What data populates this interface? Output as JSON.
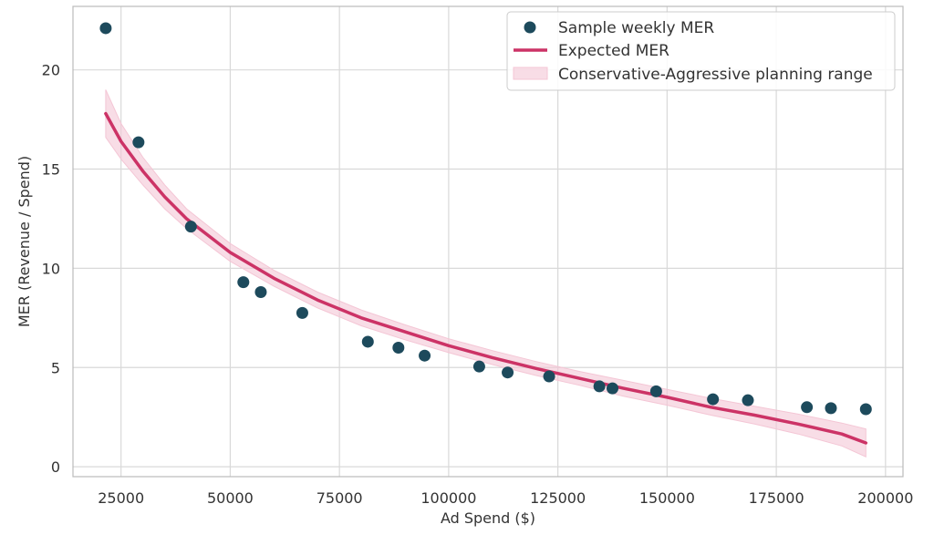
{
  "chart_data": {
    "type": "scatter",
    "title": "",
    "xlabel": "Ad Spend ($)",
    "ylabel": "MER (Revenue / Spend)",
    "xlim": [
      14000,
      204000
    ],
    "ylim": [
      -0.5,
      23.2
    ],
    "grid": true,
    "legend_position": "top-right",
    "x_ticks": [
      25000,
      50000,
      75000,
      100000,
      125000,
      150000,
      175000,
      200000
    ],
    "y_ticks": [
      0,
      5,
      10,
      15,
      20
    ],
    "x_tick_labels": [
      "25000",
      "50000",
      "75000",
      "100000",
      "125000",
      "150000",
      "175000",
      "200000"
    ],
    "y_tick_labels": [
      "0",
      "5",
      "10",
      "15",
      "20"
    ],
    "colors": {
      "scatter": "#1d4a5c",
      "line": "#cc3366",
      "band": "#f4c6d5",
      "grid": "#d9d9d9",
      "axis": "#bbbbbb"
    },
    "series": [
      {
        "name": "Sample weekly MER",
        "type": "scatter",
        "points": [
          [
            21500,
            22.1
          ],
          [
            29000,
            16.35
          ],
          [
            41000,
            12.1
          ],
          [
            53000,
            9.3
          ],
          [
            57000,
            8.8
          ],
          [
            66500,
            7.75
          ],
          [
            81500,
            6.3
          ],
          [
            88500,
            6.0
          ],
          [
            94500,
            5.6
          ],
          [
            107000,
            5.05
          ],
          [
            113500,
            4.75
          ],
          [
            123000,
            4.55
          ],
          [
            134500,
            4.05
          ],
          [
            137500,
            3.95
          ],
          [
            147500,
            3.8
          ],
          [
            160500,
            3.4
          ],
          [
            168500,
            3.35
          ],
          [
            182000,
            3.0
          ],
          [
            187500,
            2.95
          ],
          [
            195500,
            2.9
          ]
        ]
      },
      {
        "name": "Expected MER",
        "type": "line",
        "points": [
          [
            21500,
            17.8
          ],
          [
            25000,
            16.4
          ],
          [
            30000,
            14.9
          ],
          [
            35000,
            13.6
          ],
          [
            40000,
            12.5
          ],
          [
            50000,
            10.8
          ],
          [
            60000,
            9.5
          ],
          [
            70000,
            8.4
          ],
          [
            80000,
            7.5
          ],
          [
            90000,
            6.8
          ],
          [
            100000,
            6.1
          ],
          [
            110000,
            5.5
          ],
          [
            120000,
            4.95
          ],
          [
            130000,
            4.45
          ],
          [
            140000,
            3.95
          ],
          [
            150000,
            3.5
          ],
          [
            160000,
            3.0
          ],
          [
            170000,
            2.6
          ],
          [
            180000,
            2.15
          ],
          [
            190000,
            1.65
          ],
          [
            195500,
            1.2
          ]
        ]
      },
      {
        "name": "Conservative-Aggressive planning range",
        "type": "band",
        "upper": [
          [
            21500,
            19.0
          ],
          [
            25000,
            17.3
          ],
          [
            30000,
            15.6
          ],
          [
            35000,
            14.2
          ],
          [
            40000,
            13.0
          ],
          [
            50000,
            11.25
          ],
          [
            60000,
            9.9
          ],
          [
            70000,
            8.8
          ],
          [
            80000,
            7.9
          ],
          [
            90000,
            7.15
          ],
          [
            100000,
            6.45
          ],
          [
            110000,
            5.85
          ],
          [
            120000,
            5.3
          ],
          [
            130000,
            4.8
          ],
          [
            140000,
            4.35
          ],
          [
            150000,
            3.9
          ],
          [
            160000,
            3.45
          ],
          [
            170000,
            3.05
          ],
          [
            180000,
            2.65
          ],
          [
            190000,
            2.2
          ],
          [
            195500,
            1.9
          ]
        ],
        "lower": [
          [
            21500,
            16.6
          ],
          [
            25000,
            15.5
          ],
          [
            30000,
            14.2
          ],
          [
            35000,
            13.0
          ],
          [
            40000,
            12.0
          ],
          [
            50000,
            10.35
          ],
          [
            60000,
            9.1
          ],
          [
            70000,
            8.0
          ],
          [
            80000,
            7.1
          ],
          [
            90000,
            6.4
          ],
          [
            100000,
            5.75
          ],
          [
            110000,
            5.15
          ],
          [
            120000,
            4.6
          ],
          [
            130000,
            4.1
          ],
          [
            140000,
            3.55
          ],
          [
            150000,
            3.1
          ],
          [
            160000,
            2.6
          ],
          [
            170000,
            2.15
          ],
          [
            180000,
            1.65
          ],
          [
            190000,
            1.05
          ],
          [
            195500,
            0.5
          ]
        ]
      }
    ]
  }
}
